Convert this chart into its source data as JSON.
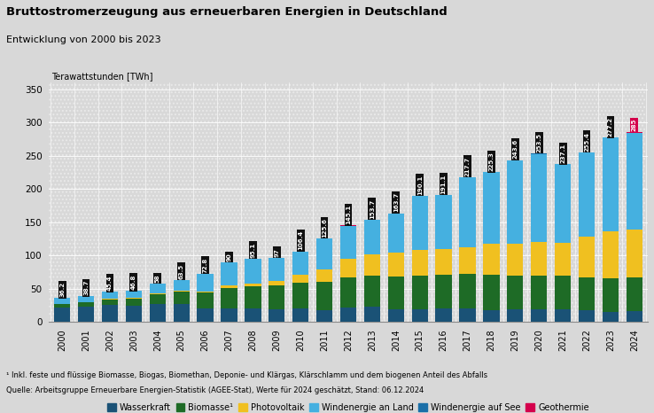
{
  "title": "Bruttostromerzeugung aus erneuerbaren Energien in Deutschland",
  "subtitle": "Entwicklung von 2000 bis 2023",
  "ylabel": "Terawattstunden [TWh]",
  "ylim": [
    0,
    360
  ],
  "yticks": [
    0,
    50,
    100,
    150,
    200,
    250,
    300,
    350
  ],
  "years": [
    2000,
    2001,
    2002,
    2003,
    2004,
    2005,
    2006,
    2007,
    2008,
    2009,
    2010,
    2011,
    2012,
    2013,
    2014,
    2015,
    2016,
    2017,
    2018,
    2019,
    2020,
    2021,
    2022,
    2023,
    2024
  ],
  "totals": [
    36.2,
    38.7,
    45.4,
    46.8,
    58.0,
    63.5,
    72.8,
    90.0,
    95.1,
    97.0,
    106.4,
    125.6,
    145.1,
    153.7,
    163.7,
    190.1,
    191.1,
    217.7,
    225.3,
    243.6,
    253.5,
    237.1,
    255.4,
    277.2,
    285
  ],
  "wasserkraft": [
    21.7,
    23.8,
    26.0,
    25.0,
    27.8,
    26.8,
    20.0,
    21.2,
    20.4,
    19.0,
    21.0,
    17.7,
    21.9,
    23.0,
    19.5,
    18.9,
    20.5,
    20.3,
    17.9,
    19.1,
    18.9,
    19.9,
    17.3,
    14.8,
    16.0
  ],
  "biomasse": [
    5.4,
    6.3,
    8.6,
    10.7,
    14.5,
    18.6,
    24.1,
    30.0,
    33.3,
    35.8,
    38.4,
    42.3,
    45.5,
    47.4,
    49.5,
    51.3,
    51.2,
    52.4,
    53.8,
    51.4,
    51.0,
    50.2,
    50.4,
    50.8,
    51.0
  ],
  "photovoltaik": [
    0.1,
    0.1,
    0.2,
    0.3,
    0.6,
    1.3,
    2.2,
    3.5,
    4.3,
    6.6,
    12.0,
    19.6,
    28.0,
    31.0,
    34.9,
    38.7,
    38.1,
    39.4,
    45.8,
    47.5,
    50.6,
    49.0,
    60.8,
    71.0,
    72.0
  ],
  "windland": [
    9.0,
    8.5,
    10.6,
    10.8,
    15.1,
    16.8,
    26.5,
    35.3,
    37.1,
    35.6,
    35.0,
    46.0,
    49.7,
    52.3,
    59.8,
    81.2,
    81.3,
    105.6,
    107.8,
    125.6,
    132.4,
    118.0,
    126.9,
    140.6,
    146.0
  ],
  "windsee": [
    0.0,
    0.0,
    0.0,
    0.0,
    0.0,
    0.0,
    0.0,
    0.0,
    0.0,
    0.0,
    0.0,
    0.0,
    0.0,
    0.0,
    0.0,
    0.0,
    0.0,
    0.0,
    0.0,
    0.0,
    0.5,
    0.0,
    0.0,
    0.0,
    0.0
  ],
  "geothermie": [
    0.0,
    0.0,
    0.0,
    0.0,
    0.0,
    0.0,
    0.0,
    0.0,
    0.0,
    0.0,
    0.0,
    0.0,
    0.0,
    0.0,
    0.0,
    0.0,
    0.0,
    0.0,
    0.0,
    0.0,
    0.0,
    0.0,
    0.0,
    0.0,
    0.0
  ],
  "color_wasserkraft": "#1a5276",
  "color_biomasse": "#1e6b26",
  "color_photovoltaik": "#f0c020",
  "color_windland": "#45b0e0",
  "color_windsee": "#1a6fa8",
  "color_geothermie": "#d4004c",
  "color_label_bg": "#111111",
  "footnote1": "¹ Inkl. feste und flüssige Biomasse, Biogas, Biomethan, Deponie- und Klärgas, Klärschlamm und dem biogenen Anteil des Abfalls",
  "footnote2": "Quelle: Arbeitsgruppe Erneuerbare Energien-Statistik (AGEE-Stat), Werte für 2024 geschätzt, Stand: 06.12.2024",
  "legend_labels": [
    "Wasserkraft",
    "Biomasse¹",
    "Photovoltaik",
    "Windenergie an Land",
    "Windenergie auf See",
    "Geothermie"
  ]
}
